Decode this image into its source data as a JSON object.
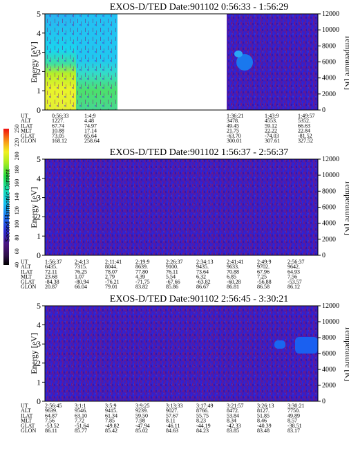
{
  "chart_data": [
    {
      "type": "heatmap",
      "title": "EXOS-D/TED   Date:901102  0:56:33 - 1:56:29",
      "ylabel": "Energy [eV]",
      "y2label": "Temperature [K]",
      "ylim": [
        0,
        5
      ],
      "y2lim": [
        0,
        12000
      ],
      "yticks": [
        "0",
        "1",
        "2",
        "3",
        "4",
        "5"
      ],
      "y2ticks": [
        "0",
        "2000",
        "4000",
        "6000",
        "8000",
        "10000",
        "12000"
      ],
      "data_gap": "white (no data) between 1:4:9 and 1:36:21",
      "row_labels": [
        "UT",
        "ALT",
        "ILAT",
        "MLT",
        "GLAT",
        "GLON"
      ],
      "columns": [
        {
          "x": "0:56:33",
          "values": [
            "1227.",
            "67.74",
            "10.88",
            "73.05",
            "168.12"
          ]
        },
        {
          "x": "1:4:9",
          "values": [
            "4.48",
            "74.97",
            "17.14",
            "65.64",
            "258.64"
          ]
        },
        {
          "x": "1:36:21",
          "values": [
            "3478.",
            "49.45",
            "21.75",
            "-63.70",
            "300.01"
          ]
        },
        {
          "x": "1:43:9",
          "values": [
            "4553.",
            "59.12",
            "22.22",
            "-74.03",
            "307.61"
          ]
        },
        {
          "x": "1:49:57",
          "values": [
            "5352.",
            "66.63",
            "22.84",
            "-81.52",
            "327.52"
          ]
        }
      ]
    },
    {
      "type": "heatmap",
      "title": "EXOS-D/TED   Date:901102  1:56:37 - 2:56:37",
      "ylabel": "Energy [eV]",
      "y2label": "Temperature [K]",
      "ylim": [
        0,
        5
      ],
      "y2lim": [
        0,
        12000
      ],
      "yticks": [
        "0",
        "1",
        "2",
        "3",
        "4",
        "5"
      ],
      "y2ticks": [
        "0",
        "2000",
        "4000",
        "6000",
        "8000",
        "10000",
        "12000"
      ],
      "row_labels": [
        "UT",
        "ALT",
        "ILAT",
        "MLT",
        "GLAT",
        "GLON"
      ],
      "columns": [
        {
          "x": "1:56:37",
          "values": [
            "6435.",
            "72.11",
            "23.68",
            "-84.38",
            "20.87"
          ]
        },
        {
          "x": "2:4:13",
          "values": [
            "7315.",
            "76.25",
            "1.07",
            "-80.94",
            "66.04"
          ]
        },
        {
          "x": "2:11:41",
          "values": [
            "8044.",
            "78.07",
            "2.79",
            "-76.21",
            "79.01"
          ]
        },
        {
          "x": "2:19:9",
          "values": [
            "8639.",
            "77.80",
            "4.39",
            "-71.75",
            "83.82"
          ]
        },
        {
          "x": "2:26:37",
          "values": [
            "9100.",
            "76.11",
            "5.54",
            "-67.66",
            "85.86"
          ]
        },
        {
          "x": "2:34:13",
          "values": [
            "9435.",
            "73.64",
            "6.32",
            "-63.82",
            "86.67"
          ]
        },
        {
          "x": "2:41:41",
          "values": [
            "9633.",
            "70.88",
            "6.85",
            "-60.28",
            "86.81"
          ]
        },
        {
          "x": "2:49:9",
          "values": [
            "9702.",
            "67.96",
            "7.25",
            "-56.88",
            "86.58"
          ]
        },
        {
          "x": "2:56:37",
          "values": [
            "9642.",
            "64.93",
            "7.56",
            "-53.57",
            "86.12"
          ]
        }
      ]
    },
    {
      "type": "heatmap",
      "title": "EXOS-D/TED   Date:901102  2:56:45 - 3:30:21",
      "ylabel": "Energy [eV]",
      "y2label": "Temperature [K]",
      "ylim": [
        0,
        5
      ],
      "y2lim": [
        0,
        12000
      ],
      "yticks": [
        "0",
        "1",
        "2",
        "3",
        "4",
        "5"
      ],
      "y2ticks": [
        "0",
        "2000",
        "4000",
        "6000",
        "8000",
        "10000",
        "12000"
      ],
      "row_labels": [
        "UT",
        "ALT",
        "ILAT",
        "MLT",
        "GLAT",
        "GLON"
      ],
      "columns": [
        {
          "x": "2:56:45",
          "values": [
            "9639.",
            "64.87",
            "7.56",
            "-53.52",
            "86.11"
          ]
        },
        {
          "x": "3:1:1",
          "values": [
            "9546.",
            "63.10",
            "7.72",
            "-51.64",
            "85.77"
          ]
        },
        {
          "x": "3:5:9",
          "values": [
            "9415.",
            "61.34",
            "7.85",
            "-49.82",
            "85.42"
          ]
        },
        {
          "x": "3:9:25",
          "values": [
            "9239.",
            "59.50",
            "7.98",
            "-47.94",
            "85.02"
          ]
        },
        {
          "x": "3:13:33",
          "values": [
            "9027.",
            "57.67",
            "8.11",
            "-46.11",
            "84.63"
          ]
        },
        {
          "x": "3:17:49",
          "values": [
            "8766.",
            "55.75",
            "8.23",
            "-44.19",
            "84.23"
          ]
        },
        {
          "x": "3:21:57",
          "values": [
            "8472.",
            "53.84",
            "8.34",
            "-42.33",
            "83.85"
          ]
        },
        {
          "x": "3:26:13",
          "values": [
            "8127.",
            "51.85",
            "8.46",
            "-40.39",
            "83.48"
          ]
        },
        {
          "x": "3:30:21",
          "values": [
            "7750.",
            "49.89",
            "8.57",
            "-38.51",
            "83.17"
          ]
        }
      ]
    }
  ],
  "colorbar": {
    "label": "Second Harmonic Current",
    "ticks": [
      "40",
      "60",
      "80",
      "100",
      "120",
      "140",
      "160",
      "180",
      "200",
      "220",
      "250"
    ]
  }
}
